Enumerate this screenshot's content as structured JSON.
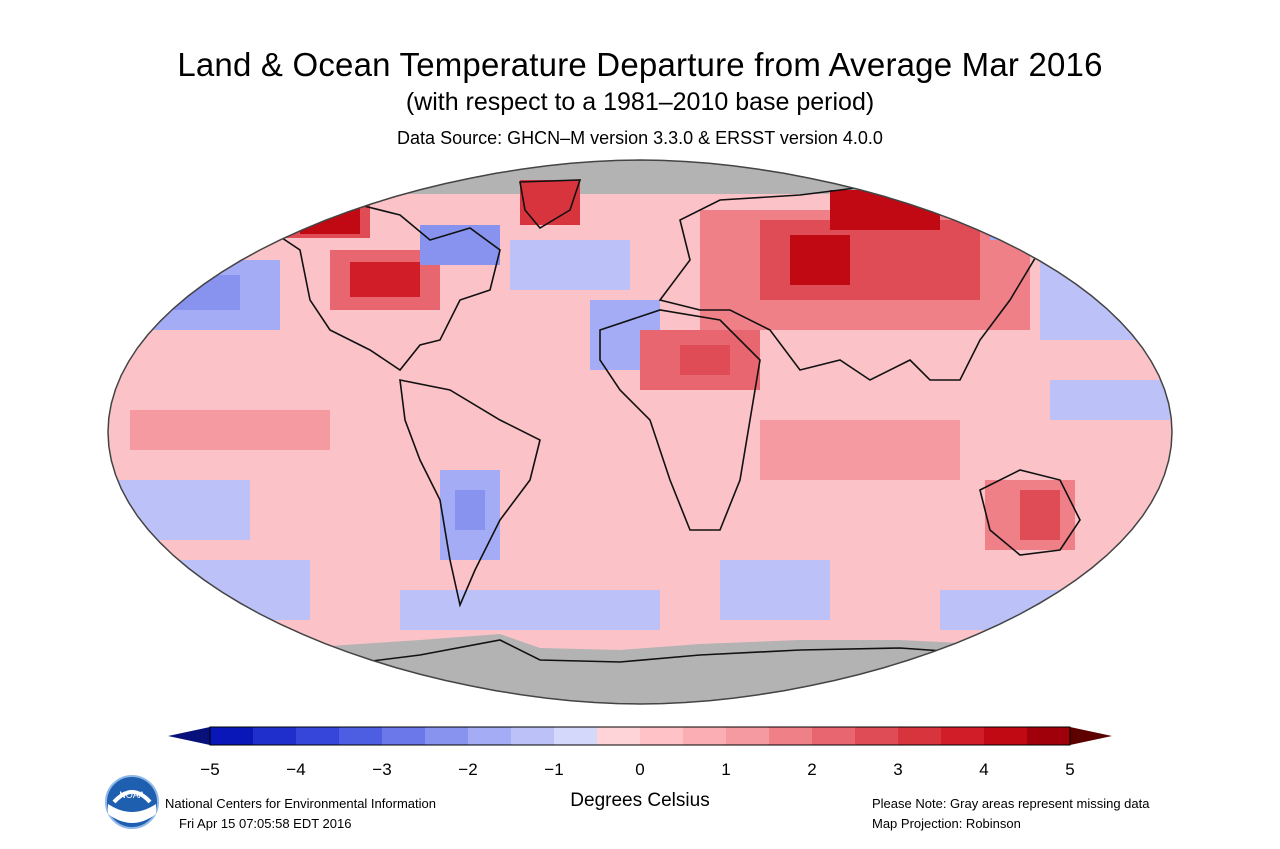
{
  "header": {
    "title": "Land & Ocean Temperature Departure from Average Mar 2016",
    "subtitle": "(with respect to a 1981–2010 base period)",
    "source": "Data Source: GHCN–M version 3.3.0 & ERSST version 4.0.0"
  },
  "map": {
    "projection_note": "Map Projection: Robinson",
    "missing_color": "#b3b3b3",
    "ocean_outline_color": "#444444"
  },
  "legend": {
    "units": "Degrees Celsius",
    "tick_labels": [
      "−5",
      "−4",
      "−3",
      "−2",
      "−1",
      "0",
      "1",
      "2",
      "3",
      "4",
      "5"
    ],
    "tick_values": [
      -5,
      -4,
      -3,
      -2,
      -1,
      0,
      1,
      2,
      3,
      4,
      5
    ],
    "colors": [
      "#0a17b8",
      "#1f2fcc",
      "#3646db",
      "#4e5ee2",
      "#6a78ea",
      "#8893f0",
      "#a4acf5",
      "#bcc2f8",
      "#d4d8fb",
      "#ffd4d8",
      "#ffc2c6",
      "#fbaeb3",
      "#f59aa0",
      "#ef8088",
      "#e8666f",
      "#e04c56",
      "#d8343e",
      "#d01d28",
      "#c00912",
      "#a0000a"
    ],
    "below_color": "#08107a",
    "above_color": "#5c0000"
  },
  "footer": {
    "org": "National Centers for Environmental Information",
    "timestamp": "Fri Apr 15 07:05:58 EDT 2016",
    "note": "Please Note: Gray areas represent missing data",
    "projection": "Map Projection: Robinson",
    "logo_text": "NOAA"
  }
}
